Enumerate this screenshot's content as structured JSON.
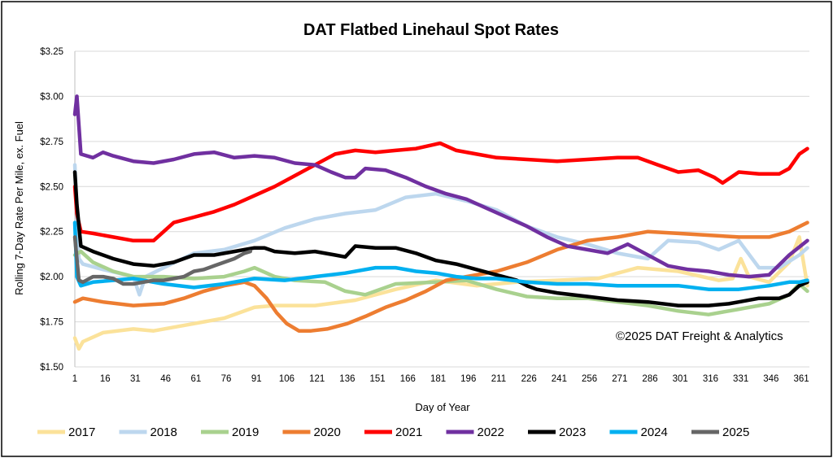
{
  "chart_data": {
    "type": "line",
    "title": "DAT Flatbed Linehaul Spot Rates",
    "xlabel": "Day of Year",
    "ylabel": "Rolling 7-Day Rate Per Mile, ex. Fuel",
    "annotation": "©2025 DAT Freight & Analytics",
    "xlim": [
      1,
      365
    ],
    "ylim": [
      1.5,
      3.25
    ],
    "x_ticks": [
      1,
      16,
      31,
      46,
      61,
      76,
      91,
      106,
      121,
      136,
      151,
      166,
      181,
      196,
      211,
      226,
      241,
      256,
      271,
      286,
      301,
      316,
      331,
      346,
      361
    ],
    "y_ticks": [
      1.5,
      1.75,
      2.0,
      2.25,
      2.5,
      2.75,
      3.0,
      3.25
    ],
    "y_tick_labels": [
      "$1.50",
      "$1.75",
      "$2.00",
      "$2.25",
      "$2.50",
      "$2.75",
      "$3.00",
      "$3.25"
    ],
    "grid": "horizontal",
    "legend": "bottom",
    "series": [
      {
        "name": "2017",
        "color": "#FBE29A",
        "x": [
          1,
          3,
          5,
          15,
          30,
          40,
          60,
          75,
          90,
          100,
          120,
          140,
          160,
          180,
          200,
          220,
          240,
          260,
          280,
          300,
          320,
          327,
          331,
          335,
          345,
          355,
          360,
          364
        ],
        "y": [
          1.66,
          1.6,
          1.64,
          1.69,
          1.71,
          1.7,
          1.74,
          1.77,
          1.83,
          1.84,
          1.84,
          1.87,
          1.93,
          1.98,
          1.95,
          1.97,
          1.98,
          1.99,
          2.05,
          2.03,
          1.98,
          1.99,
          2.1,
          2.0,
          1.97,
          2.08,
          2.22,
          1.95
        ]
      },
      {
        "name": "2018",
        "color": "#BDD7EE",
        "x": [
          1,
          3,
          5,
          15,
          30,
          33,
          36,
          45,
          60,
          75,
          90,
          105,
          120,
          135,
          150,
          165,
          180,
          195,
          210,
          225,
          240,
          255,
          270,
          285,
          295,
          310,
          320,
          330,
          340,
          350,
          360,
          364
        ],
        "y": [
          2.62,
          2.1,
          2.07,
          2.04,
          2.0,
          1.9,
          2.0,
          2.05,
          2.13,
          2.15,
          2.2,
          2.27,
          2.32,
          2.35,
          2.37,
          2.44,
          2.46,
          2.42,
          2.37,
          2.28,
          2.22,
          2.18,
          2.13,
          2.1,
          2.2,
          2.19,
          2.15,
          2.2,
          2.05,
          2.05,
          2.12,
          2.16
        ]
      },
      {
        "name": "2019",
        "color": "#A9D18E",
        "x": [
          1,
          4,
          10,
          20,
          30,
          45,
          60,
          75,
          85,
          90,
          100,
          110,
          125,
          135,
          145,
          160,
          180,
          195,
          210,
          225,
          240,
          255,
          270,
          285,
          300,
          315,
          330,
          345,
          355,
          360,
          364
        ],
        "y": [
          2.12,
          2.14,
          2.08,
          2.03,
          2.0,
          2.0,
          1.99,
          2.0,
          2.03,
          2.05,
          2.0,
          1.98,
          1.97,
          1.92,
          1.9,
          1.96,
          1.97,
          1.98,
          1.93,
          1.89,
          1.88,
          1.88,
          1.86,
          1.84,
          1.81,
          1.79,
          1.82,
          1.85,
          1.9,
          1.96,
          1.92
        ]
      },
      {
        "name": "2020",
        "color": "#ED7D31",
        "x": [
          1,
          5,
          15,
          30,
          45,
          55,
          65,
          75,
          85,
          90,
          96,
          101,
          106,
          112,
          118,
          126,
          136,
          145,
          155,
          165,
          175,
          185,
          195,
          210,
          225,
          240,
          255,
          270,
          285,
          300,
          315,
          330,
          345,
          355,
          364
        ],
        "y": [
          1.86,
          1.88,
          1.86,
          1.84,
          1.85,
          1.88,
          1.92,
          1.95,
          1.97,
          1.95,
          1.88,
          1.8,
          1.74,
          1.7,
          1.7,
          1.71,
          1.74,
          1.78,
          1.83,
          1.87,
          1.92,
          1.98,
          2.0,
          2.03,
          2.08,
          2.15,
          2.2,
          2.22,
          2.25,
          2.24,
          2.23,
          2.22,
          2.22,
          2.25,
          2.3
        ]
      },
      {
        "name": "2021",
        "color": "#FF0000",
        "x": [
          1,
          2,
          4,
          10,
          20,
          30,
          40,
          45,
          50,
          60,
          70,
          80,
          90,
          100,
          110,
          120,
          130,
          140,
          150,
          160,
          170,
          182,
          190,
          200,
          210,
          225,
          240,
          255,
          270,
          280,
          290,
          300,
          310,
          318,
          322,
          330,
          340,
          350,
          355,
          360,
          364
        ],
        "y": [
          2.5,
          2.35,
          2.25,
          2.24,
          2.22,
          2.2,
          2.2,
          2.25,
          2.3,
          2.33,
          2.36,
          2.4,
          2.45,
          2.5,
          2.56,
          2.62,
          2.68,
          2.7,
          2.69,
          2.7,
          2.71,
          2.74,
          2.7,
          2.68,
          2.66,
          2.65,
          2.64,
          2.65,
          2.66,
          2.66,
          2.62,
          2.58,
          2.59,
          2.55,
          2.52,
          2.58,
          2.57,
          2.57,
          2.6,
          2.68,
          2.71
        ]
      },
      {
        "name": "2022",
        "color": "#7030A0",
        "x": [
          1,
          2,
          4,
          10,
          15,
          20,
          30,
          40,
          50,
          60,
          70,
          80,
          90,
          100,
          110,
          120,
          128,
          135,
          140,
          145,
          155,
          165,
          175,
          185,
          195,
          205,
          215,
          225,
          235,
          245,
          255,
          265,
          275,
          285,
          295,
          305,
          315,
          325,
          335,
          345,
          355,
          364
        ],
        "y": [
          2.9,
          3.0,
          2.68,
          2.66,
          2.69,
          2.67,
          2.64,
          2.63,
          2.65,
          2.68,
          2.69,
          2.66,
          2.67,
          2.66,
          2.63,
          2.62,
          2.58,
          2.55,
          2.55,
          2.6,
          2.59,
          2.55,
          2.5,
          2.46,
          2.43,
          2.38,
          2.33,
          2.28,
          2.22,
          2.17,
          2.15,
          2.13,
          2.18,
          2.12,
          2.06,
          2.04,
          2.03,
          2.01,
          2.0,
          2.01,
          2.12,
          2.2
        ]
      },
      {
        "name": "2023",
        "color": "#000000",
        "x": [
          1,
          2,
          4,
          10,
          20,
          30,
          40,
          50,
          60,
          70,
          80,
          90,
          95,
          100,
          110,
          120,
          130,
          135,
          140,
          150,
          160,
          170,
          180,
          190,
          200,
          210,
          220,
          225,
          230,
          240,
          255,
          270,
          285,
          300,
          315,
          325,
          330,
          340,
          350,
          355,
          360,
          364
        ],
        "y": [
          2.58,
          2.4,
          2.17,
          2.14,
          2.1,
          2.07,
          2.06,
          2.08,
          2.12,
          2.12,
          2.14,
          2.16,
          2.16,
          2.14,
          2.13,
          2.14,
          2.12,
          2.11,
          2.17,
          2.16,
          2.16,
          2.13,
          2.09,
          2.07,
          2.04,
          2.01,
          1.98,
          1.95,
          1.93,
          1.91,
          1.89,
          1.87,
          1.86,
          1.84,
          1.84,
          1.85,
          1.86,
          1.88,
          1.88,
          1.9,
          1.95,
          1.97
        ]
      },
      {
        "name": "2024",
        "color": "#00B0F0",
        "x": [
          1,
          2,
          4,
          10,
          20,
          30,
          45,
          60,
          75,
          90,
          105,
          120,
          135,
          150,
          160,
          170,
          180,
          190,
          200,
          210,
          225,
          240,
          255,
          270,
          285,
          300,
          315,
          330,
          345,
          355,
          360,
          364
        ],
        "y": [
          2.3,
          2.0,
          1.95,
          1.97,
          1.98,
          1.99,
          1.96,
          1.94,
          1.96,
          1.99,
          1.98,
          2.0,
          2.02,
          2.05,
          2.05,
          2.03,
          2.02,
          2.0,
          1.99,
          1.99,
          1.97,
          1.96,
          1.96,
          1.95,
          1.95,
          1.95,
          1.93,
          1.93,
          1.95,
          1.97,
          1.97,
          1.98
        ]
      },
      {
        "name": "2025",
        "color": "#666666",
        "x": [
          1,
          2,
          3,
          5,
          10,
          15,
          20,
          25,
          30,
          35,
          40,
          45,
          50,
          55,
          60,
          65,
          70,
          75,
          80,
          85,
          88
        ],
        "y": [
          2.22,
          2.1,
          1.98,
          1.97,
          2.0,
          2.0,
          1.99,
          1.96,
          1.96,
          1.97,
          1.98,
          1.98,
          1.99,
          2.0,
          2.03,
          2.04,
          2.06,
          2.08,
          2.1,
          2.13,
          2.14
        ]
      }
    ]
  }
}
